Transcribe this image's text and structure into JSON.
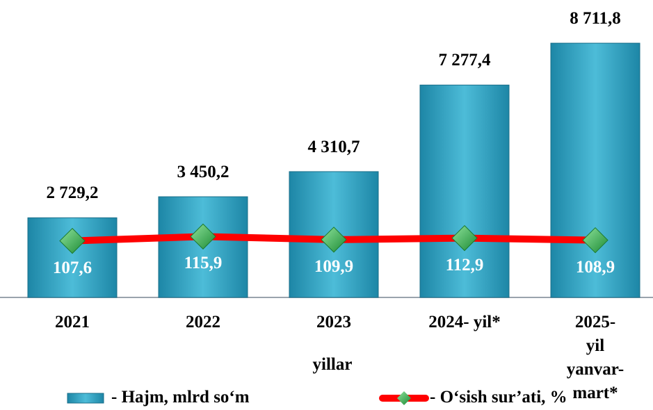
{
  "chart_data": {
    "type": "bar",
    "x_label": "yillar",
    "categories": [
      "2021",
      "2022",
      "2023",
      "2024- yil*",
      "2025- yil\nyanvar-\nmart*"
    ],
    "ylim": [
      0,
      9000
    ],
    "y2lim": [
      0,
      500
    ],
    "series": [
      {
        "name": "- Hajm, mlrd so‘m",
        "type": "bar",
        "color": "#2a9cbf",
        "values": [
          2729.2,
          3450.2,
          4310.7,
          7277.4,
          8711.8
        ],
        "value_labels": [
          "2 729,2",
          "3 450,2",
          "4 310,7",
          "7 277,4",
          "8 711,8"
        ]
      },
      {
        "name": "- O‘sish sur’ati, %",
        "type": "line",
        "axis": "y2",
        "color": "#ff0000",
        "marker_color": "#2fb34a",
        "values": [
          107.6,
          115.9,
          109.9,
          112.9,
          108.9
        ],
        "value_labels": [
          "107,6",
          "115,9",
          "109,9",
          "112,9",
          "108,9"
        ]
      }
    ]
  }
}
